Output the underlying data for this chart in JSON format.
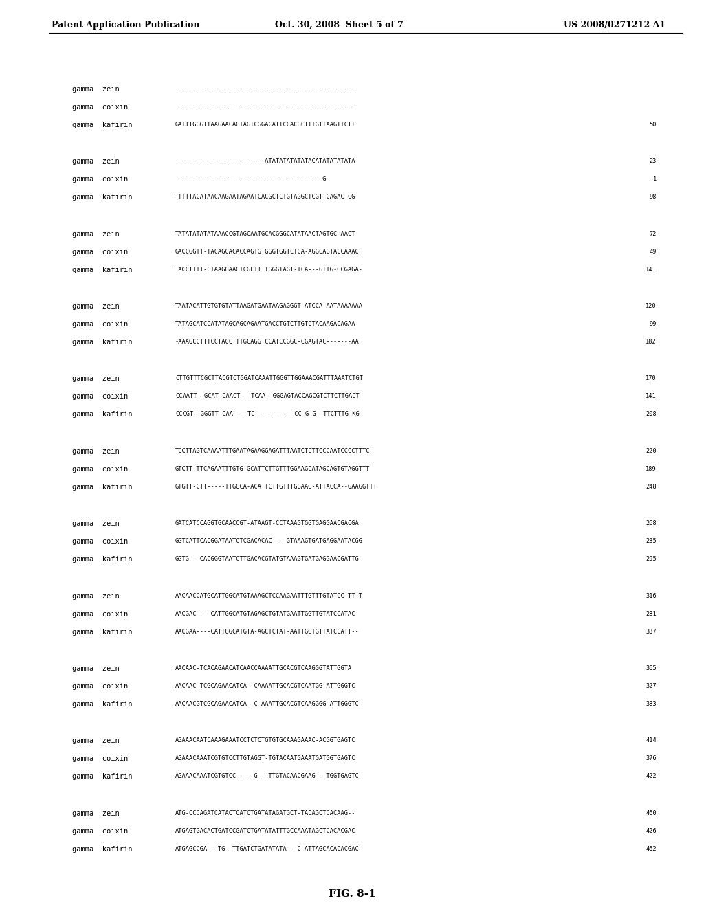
{
  "header_left": "Patent Application Publication",
  "header_center": "Oct. 30, 2008  Sheet 5 of 7",
  "header_right": "US 2008/0271212 A1",
  "figure_label": "FIG. 8-1",
  "background_color": "#ffffff",
  "text_color": "#000000",
  "alignment_blocks": [
    {
      "rows": [
        {
          "label": "gamma  zein",
          "seq": "--------------------------------------------------",
          "num": ""
        },
        {
          "label": "gamma  coixin",
          "seq": "--------------------------------------------------",
          "num": ""
        },
        {
          "label": "gamma  kafirin",
          "seq": "GATTTGGGTTAAGAACAGTAGTCGGACATTCCACGCTTTGTTAAGTTCTT",
          "num": "50"
        }
      ]
    },
    {
      "rows": [
        {
          "label": "gamma  zein",
          "seq": "-------------------------ATATATATATATACATATATATATA",
          "num": "23"
        },
        {
          "label": "gamma  coixin",
          "seq": "-----------------------------------------G",
          "num": "1"
        },
        {
          "label": "gamma  kafirin",
          "seq": "TTTTTACATAACAAGAATAGAATCACGCTCTGTAGGCTCGT-CAGAC-CG",
          "num": "98"
        }
      ]
    },
    {
      "rows": [
        {
          "label": "gamma  zein",
          "seq": "TATATATATATAAACCGTAGCAATGCACGGGCATATAACTAGTGC-AACT",
          "num": "72"
        },
        {
          "label": "gamma  coixin",
          "seq": "GACCGGTT-TACAGCACACCAGTGTGGGTGGTCTCA-AGGCAGTACCAAAC",
          "num": "49"
        },
        {
          "label": "gamma  kafirin",
          "seq": "TACCTTTT-CTAAGGAAGTCGCTTTTGGGTAGT-TCA---GTTG-GCGAGA-",
          "num": "141"
        }
      ]
    },
    {
      "rows": [
        {
          "label": "gamma  zein",
          "seq": "TAATACATTGTGTGTATTAAGATGAATAAGAGGGT-ATCCA-AATAAAAAAA",
          "num": "120"
        },
        {
          "label": "gamma  coixin",
          "seq": "TATAGCATCCATATAGCAGCAGAATGACCTGTCTTGTCTACAAGACAGAA",
          "num": "99"
        },
        {
          "label": "gamma  kafirin",
          "seq": "-AAAGCCTTTCCTACCTTTGCAGGTCCATCCGGC-CGAGTAC-------AA",
          "num": "182"
        }
      ]
    },
    {
      "rows": [
        {
          "label": "gamma  zein",
          "seq": "CTTGTTTCGCTTACGTCTGGATCAAATTGGGTTGGAAACGATTTAAATCTGT",
          "num": "170"
        },
        {
          "label": "gamma  coixin",
          "seq": "CCAATT--GCAT-CAACT---TCAA--GGGAGTACCAGCGTCTTCTTGACT",
          "num": "141"
        },
        {
          "label": "gamma  kafirin",
          "seq": "CCCGT--GGGTT-CAA----TC-----------CC-G-G--TTCTTTG-KG",
          "num": "208"
        }
      ]
    },
    {
      "rows": [
        {
          "label": "gamma  zein",
          "seq": "TCCTTAGTCAAAATTTGAATAGAAGGAGATTTAATCTCTTCCCAATCCCCTTTC",
          "num": "220"
        },
        {
          "label": "gamma  coixin",
          "seq": "GTCTT-TTCAGAATTTGTG-GCATTCTTGTTTGGAAGCATAGCAGTGTAGGTTT",
          "num": "189"
        },
        {
          "label": "gamma  kafirin",
          "seq": "GTGTT-CTT-----TTGGCA-ACATTCTTGTTTGGAAG-ATTACCA--GAAGGTTT",
          "num": "248"
        }
      ]
    },
    {
      "rows": [
        {
          "label": "gamma  zein",
          "seq": "GATCATCCAGGTGCAACCGT-ATAAGT-CCTAAAGTGGTGAGGAACGACGA",
          "num": "268"
        },
        {
          "label": "gamma  coixin",
          "seq": "GGTCATTCACGGATAATCTCGACACAC----GTAAAGTGATGAGGAATACGG",
          "num": "235"
        },
        {
          "label": "gamma  kafirin",
          "seq": "GGTG---CACGGGTAATCTTGACACGTATGTAAAGTGATGAGGAACGATTG",
          "num": "295"
        }
      ]
    },
    {
      "rows": [
        {
          "label": "gamma  zein",
          "seq": "AACAACCATGCATTGGCATGTAAAGCTCCAAGAATTTGTTTGTATCC-TT-T",
          "num": "316"
        },
        {
          "label": "gamma  coixin",
          "seq": "AACGAC----CATTGGCATGTAGAGCTGTATGAATTGGTTGTATCCATAC",
          "num": "281"
        },
        {
          "label": "gamma  kafirin",
          "seq": "AACGAA----CATTGGCATGTA-AGCTCTAT-AATTGGTGTTATCCATT--",
          "num": "337"
        }
      ]
    },
    {
      "rows": [
        {
          "label": "gamma  zein",
          "seq": "AACAAC-TCACAGAACATCAACCAAAATTGCACGTCAAGGGTATTGGTA",
          "num": "365"
        },
        {
          "label": "gamma  coixin",
          "seq": "AACAAC-TCGCAGAACATCA--CAAAATTGCACGTCAATGG-ATTGGGTC",
          "num": "327"
        },
        {
          "label": "gamma  kafirin",
          "seq": "AACAACGTCGCAGAACATCA--C-AAATTGCACGTCAAGGGG-ATTGGGTC",
          "num": "383"
        }
      ]
    },
    {
      "rows": [
        {
          "label": "gamma  zein",
          "seq": "AGAAACAATCAAAGAAATCCTCTCTGTGTGCAAAGAAAC-ACGGTGAGTC",
          "num": "414"
        },
        {
          "label": "gamma  coixin",
          "seq": "AGAAACAAATCGTGTCCTTGTAGGT-TGTACAATGAAATGATGGTGAGTC",
          "num": "376"
        },
        {
          "label": "gamma  kafirin",
          "seq": "AGAAACAAATCGTGTCC-----G---TTGTACAACGAAG---TGGTGAGTC",
          "num": "422"
        }
      ]
    },
    {
      "rows": [
        {
          "label": "gamma  zein",
          "seq": "ATG-CCCAGATCATACTCATCTGATATAGATGCT-TACAGCTCACAAG--",
          "num": "460"
        },
        {
          "label": "gamma  coixin",
          "seq": "ATGAGTGACACTGATCCGATCTGATATATTTGCCAAATAGCTCACACGAC",
          "num": "426"
        },
        {
          "label": "gamma  kafirin",
          "seq": "ATGAGCCGA---TG--TTGATCTGATATATA---C-ATTAGCACACACGAC",
          "num": "462"
        }
      ]
    }
  ]
}
